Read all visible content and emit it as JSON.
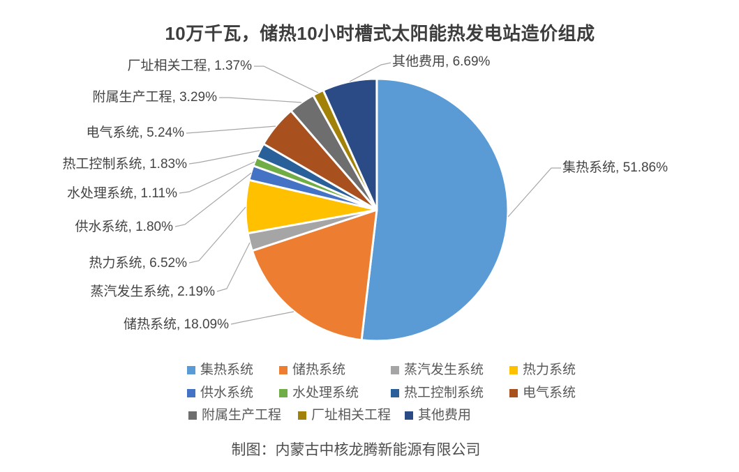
{
  "title": "10万千瓦，储热10小时槽式太阳能热发电站造价组成",
  "caption": "制图：内蒙古中核龙腾新能源有限公司",
  "chart_data": {
    "type": "pie",
    "title": "10万千瓦，储热10小时槽式太阳能热发电站造价组成",
    "value_unit": "%",
    "start_angle_deg": 0,
    "direction": "clockwise",
    "label_format": "{name}, {value}%",
    "legend_position": "bottom",
    "slices": [
      {
        "name": "集热系统",
        "value": 51.86,
        "color": "#5B9BD5"
      },
      {
        "name": "储热系统",
        "value": 18.09,
        "color": "#ED7D31"
      },
      {
        "name": "蒸汽发生系统",
        "value": 2.19,
        "color": "#A5A5A5"
      },
      {
        "name": "热力系统",
        "value": 6.52,
        "color": "#FFC000"
      },
      {
        "name": "供水系统",
        "value": 1.8,
        "color": "#4472C4"
      },
      {
        "name": "水处理系统",
        "value": 1.11,
        "color": "#70AD47"
      },
      {
        "name": "热工控制系统",
        "value": 1.83,
        "color": "#2A6099"
      },
      {
        "name": "电气系统",
        "value": 5.24,
        "color": "#A8501E"
      },
      {
        "name": "附属生产工程",
        "value": 3.29,
        "color": "#6E6E6E"
      },
      {
        "name": "厂址相关工程",
        "value": 1.37,
        "color": "#A28109"
      },
      {
        "name": "其他费用",
        "value": 6.69,
        "color": "#2A4B85"
      }
    ]
  }
}
